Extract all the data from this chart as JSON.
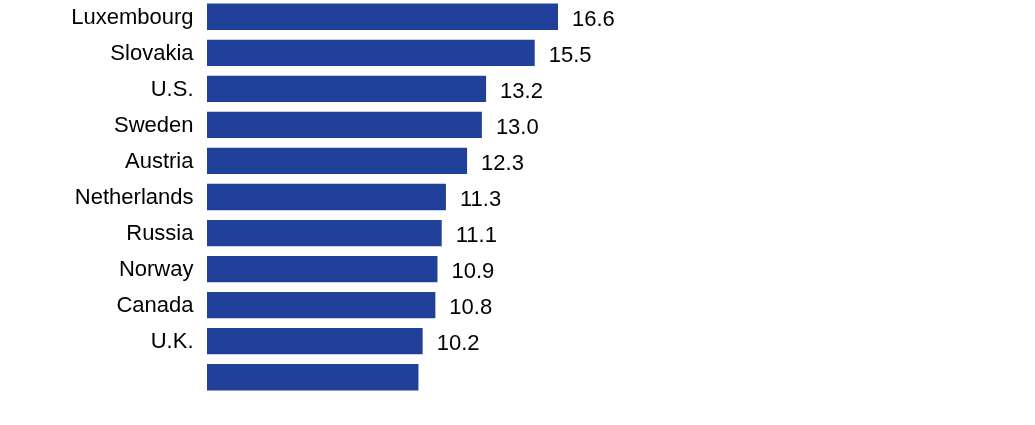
{
  "chart_data": {
    "type": "bar",
    "orientation": "horizontal",
    "categories": [
      "Luxembourg",
      "Slovakia",
      "U.S.",
      "Sweden",
      "Austria",
      "Netherlands",
      "Russia",
      "Norway",
      "Canada",
      "U.K.",
      null
    ],
    "values": [
      16.6,
      15.5,
      13.2,
      13.0,
      12.3,
      11.3,
      11.1,
      10.9,
      10.8,
      10.2,
      10.0
    ],
    "value_labels": [
      "16.6",
      "15.5",
      "13.2",
      "13.0",
      "12.3",
      "11.3",
      "11.1",
      "10.9",
      "10.8",
      "10.2",
      null
    ],
    "color": "#21409a"
  }
}
